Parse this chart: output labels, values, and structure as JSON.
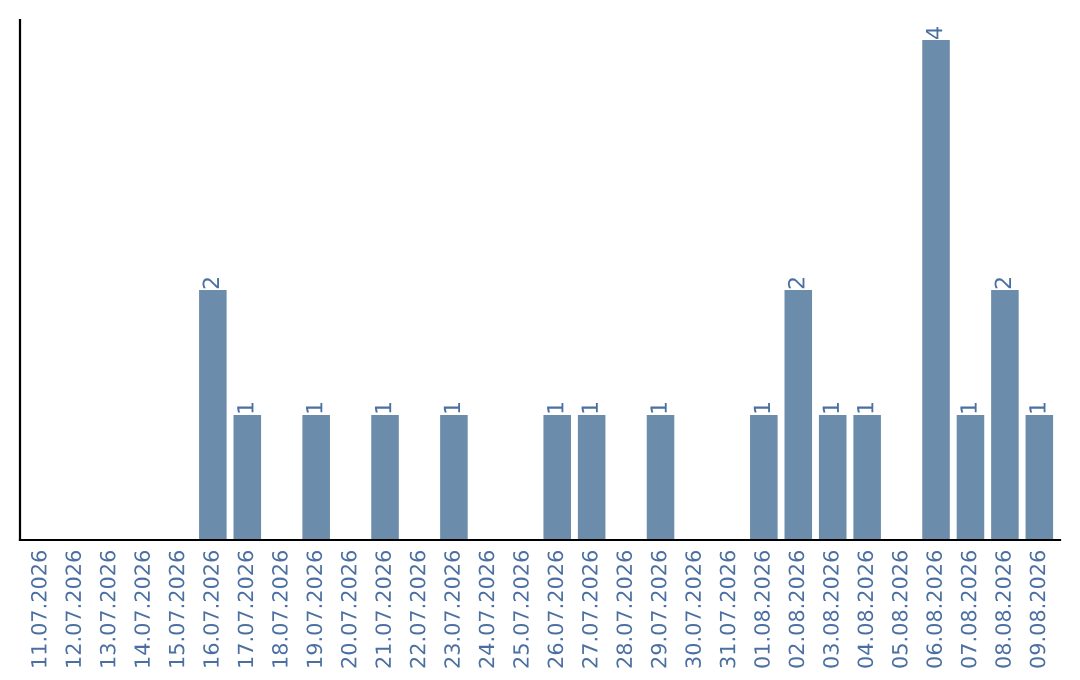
{
  "chart_data": {
    "type": "bar",
    "categories": [
      "11.07.2026",
      "12.07.2026",
      "13.07.2026",
      "14.07.2026",
      "15.07.2026",
      "16.07.2026",
      "17.07.2026",
      "18.07.2026",
      "19.07.2026",
      "20.07.2026",
      "21.07.2026",
      "22.07.2026",
      "23.07.2026",
      "24.07.2026",
      "25.07.2026",
      "26.07.2026",
      "27.07.2026",
      "28.07.2026",
      "29.07.2026",
      "30.07.2026",
      "31.07.2026",
      "01.08.2026",
      "02.08.2026",
      "03.08.2026",
      "04.08.2026",
      "05.08.2026",
      "06.08.2026",
      "07.08.2026",
      "08.08.2026",
      "09.08.2026"
    ],
    "values": [
      0,
      0,
      0,
      0,
      0,
      2,
      1,
      0,
      1,
      0,
      1,
      0,
      1,
      0,
      0,
      1,
      1,
      0,
      1,
      0,
      0,
      1,
      2,
      1,
      1,
      0,
      4,
      1,
      2,
      1
    ],
    "value_labels": [
      null,
      null,
      null,
      null,
      null,
      "2",
      "1",
      null,
      "1",
      null,
      "1",
      null,
      "1",
      null,
      null,
      "1",
      "1",
      null,
      "1",
      null,
      null,
      "1",
      "2",
      "1",
      "1",
      null,
      "4",
      "1",
      "2",
      "1"
    ],
    "color": "#6b8caa",
    "grid": false,
    "tick_labels": "x"
  }
}
